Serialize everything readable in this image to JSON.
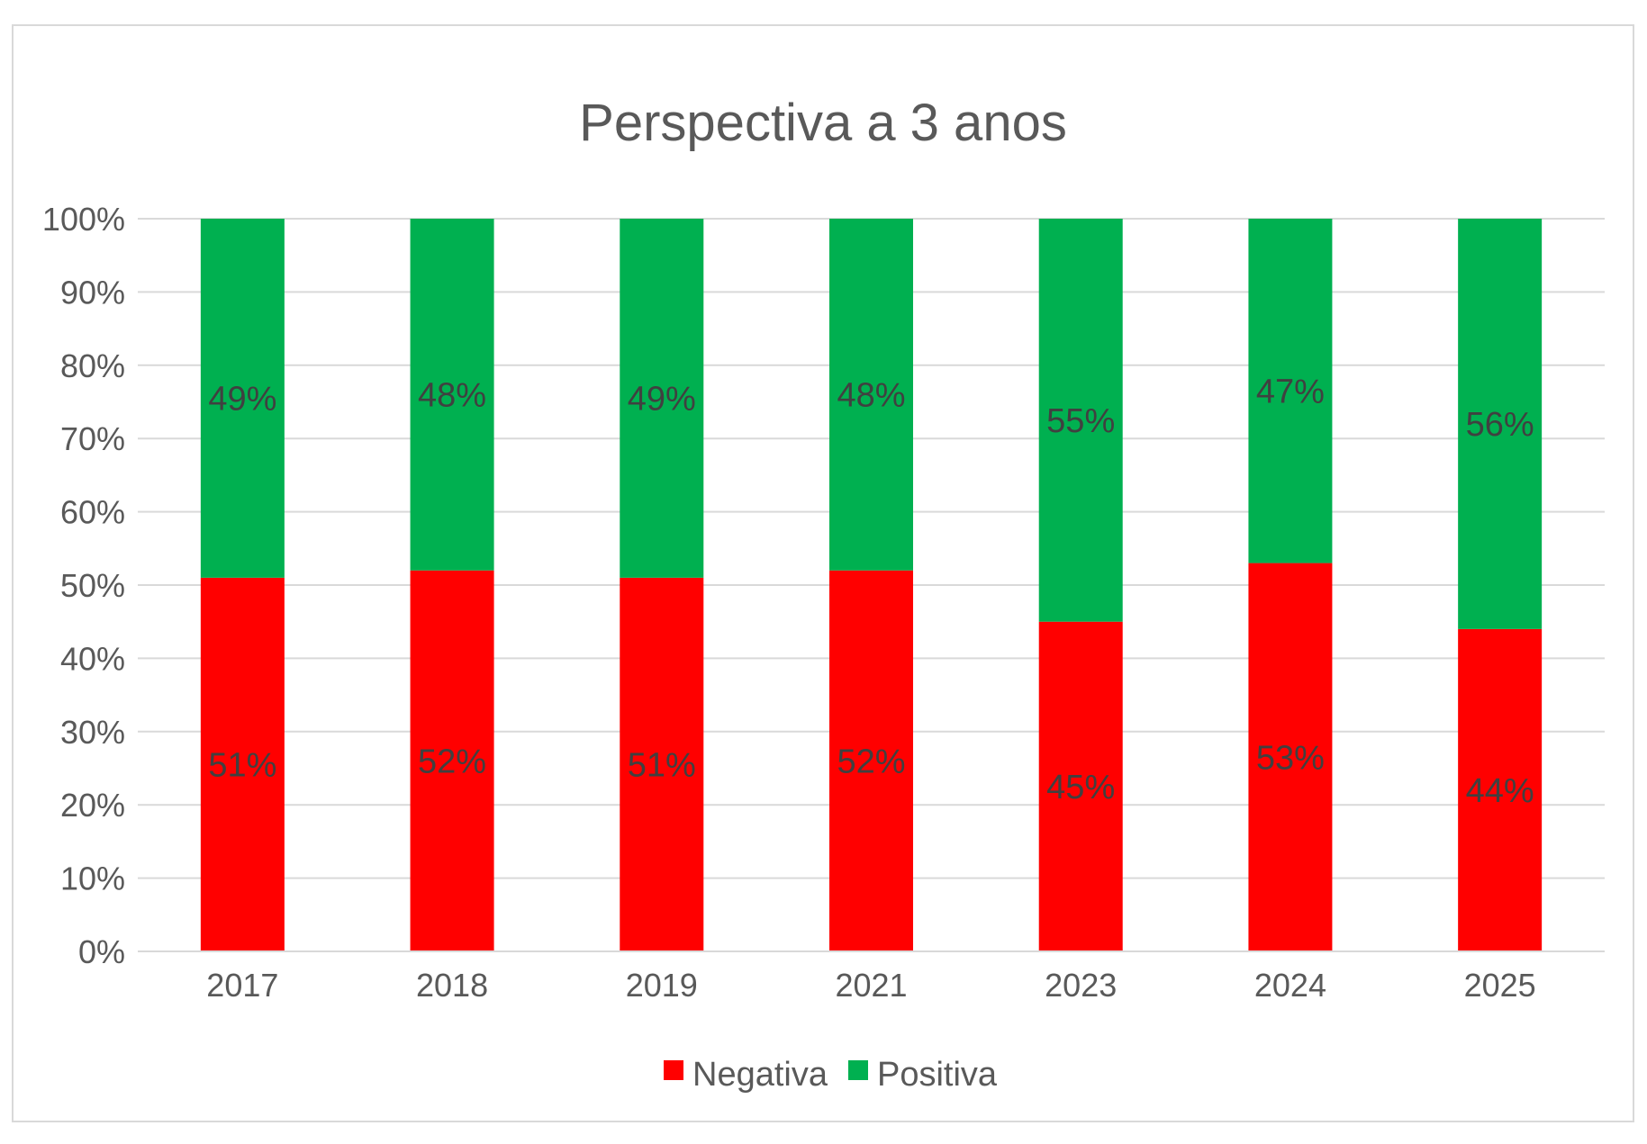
{
  "chart_data": {
    "type": "bar",
    "stacked": "percent",
    "title": "Perspectiva a 3 anos",
    "xlabel": "",
    "ylabel": "",
    "ylim": [
      0,
      100
    ],
    "yticks": [
      "0%",
      "10%",
      "20%",
      "30%",
      "40%",
      "50%",
      "60%",
      "70%",
      "80%",
      "90%",
      "100%"
    ],
    "grid": true,
    "legend_position": "bottom",
    "categories": [
      "2017",
      "2018",
      "2019",
      "2021",
      "2023",
      "2024",
      "2025"
    ],
    "series": [
      {
        "name": "Negativa",
        "color": "#ff0000",
        "values": [
          51,
          52,
          51,
          52,
          45,
          53,
          44
        ],
        "labels": [
          "51%",
          "52%",
          "51%",
          "52%",
          "45%",
          "53%",
          "44%"
        ]
      },
      {
        "name": "Positiva",
        "color": "#00b050",
        "values": [
          49,
          48,
          49,
          48,
          55,
          47,
          56
        ],
        "labels": [
          "49%",
          "48%",
          "49%",
          "48%",
          "55%",
          "47%",
          "56%"
        ]
      }
    ]
  }
}
